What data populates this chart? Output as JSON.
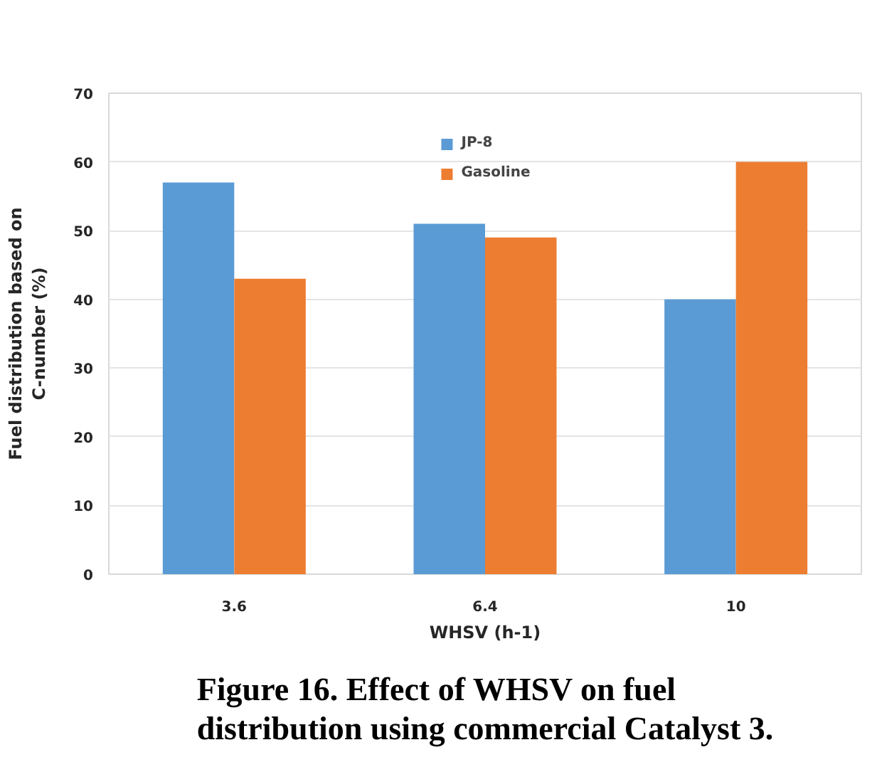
{
  "chart_data": {
    "type": "bar",
    "title": "Figure 16. Effect of WHSV on fuel distribution using commercial Catalyst 3.",
    "xlabel": "WHSV (h-1)",
    "ylabel": "Fuel distribution based on C-number (%)",
    "categories": [
      "3.6",
      "6.4",
      "10"
    ],
    "series": [
      {
        "name": "JP-8",
        "color": "#5b9bd5",
        "values": [
          57,
          51,
          40
        ]
      },
      {
        "name": "Gasoline",
        "color": "#ed7d31",
        "values": [
          43,
          49,
          60
        ]
      }
    ],
    "ylim": [
      0,
      70
    ],
    "yticks": [
      0,
      10,
      20,
      30,
      40,
      50,
      60,
      70
    ],
    "grid": "y",
    "legend": "top"
  }
}
